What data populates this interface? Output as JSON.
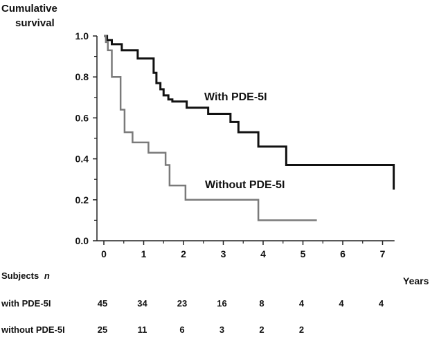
{
  "chart_data": {
    "type": "line",
    "subtype": "step (Kaplan-Meier)",
    "ylabel": "Cumulative survival",
    "xlabel": "Years",
    "ylim": [
      0,
      1.0
    ],
    "xlim": [
      0,
      7
    ],
    "x_ticks": [
      "0",
      "1",
      "2",
      "3",
      "4",
      "5",
      "6",
      "7"
    ],
    "y_ticks": [
      "0.0",
      "0.2",
      "0.4",
      "0.6",
      "0.8",
      "1.0"
    ],
    "grid": false,
    "colors": {
      "with": "#111111",
      "without": "#7a7a7a",
      "axis": "#222222"
    },
    "series": [
      {
        "name": "With PDE-5I",
        "x": [
          0,
          0.08,
          0.2,
          0.45,
          0.85,
          1.25,
          1.32,
          1.42,
          1.5,
          1.62,
          1.72,
          2.08,
          2.62,
          3.18,
          3.38,
          3.88,
          4.58,
          7.28
        ],
        "y": [
          1.0,
          0.98,
          0.96,
          0.93,
          0.89,
          0.82,
          0.77,
          0.74,
          0.71,
          0.69,
          0.68,
          0.65,
          0.62,
          0.58,
          0.53,
          0.46,
          0.37,
          0.25
        ],
        "x_end": 7.28
      },
      {
        "name": "Without PDE-5I",
        "x": [
          0,
          0.05,
          0.1,
          0.2,
          0.42,
          0.52,
          0.72,
          1.12,
          1.55,
          1.65,
          2.05,
          3.88
        ],
        "y": [
          1.0,
          0.97,
          0.93,
          0.8,
          0.64,
          0.53,
          0.48,
          0.43,
          0.37,
          0.27,
          0.2,
          0.1
        ],
        "x_end": 5.35
      }
    ],
    "risk_table": {
      "title": "Subjects",
      "title_italic": "n",
      "rows": [
        {
          "label": "with PDE-5I",
          "values": [
            "45",
            "34",
            "23",
            "16",
            "8",
            "4",
            "4",
            "4"
          ]
        },
        {
          "label": "without PDE-5I",
          "values": [
            "25",
            "11",
            "6",
            "3",
            "2",
            "2"
          ]
        }
      ]
    }
  }
}
